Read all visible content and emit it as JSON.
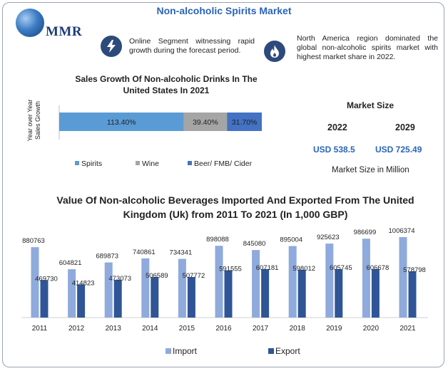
{
  "header": {
    "title": "Non-alcoholic Spirits Market",
    "logo_text": "MMR"
  },
  "insights": [
    {
      "icon": "lightning-bolt-icon",
      "text": "Online Segment witnessing rapid growth during the forecast period."
    },
    {
      "icon": "flame-icon",
      "text": "North America region dominated the global non-alcoholic spirits market with highest market share in 2022."
    }
  ],
  "market_size": {
    "title": "Market Size",
    "year_1": "2022",
    "year_2": "2029",
    "value_1": "USD 538.5",
    "value_2": "USD 725.49",
    "unit_note": "Market Size in Million"
  },
  "colors": {
    "title_blue": "#2b64b8",
    "spirits": "#5b9bd5",
    "wine": "#a5a5a5",
    "beer": "#4472c4",
    "import": "#8faadc",
    "export": "#2f5597"
  },
  "chart_data": [
    {
      "type": "bar",
      "stacked": true,
      "orientation": "horizontal",
      "title": "Sales Growth Of Non-alcoholic Drinks In The United States In 2021",
      "ylabel": "Year over Year Sales Growth",
      "series": [
        {
          "name": "Spirits",
          "values": [
            113.4
          ],
          "label": "113.40%"
        },
        {
          "name": "Wine",
          "values": [
            39.4
          ],
          "label": "39.40%"
        },
        {
          "name": "Beer/ FMB/ Cider",
          "values": [
            31.7
          ],
          "label": "31.70%"
        }
      ],
      "legend": "bottom"
    },
    {
      "type": "bar",
      "title": "Value Of Non-alcoholic Beverages Imported And Exported From The United Kingdom (Uk) from 2011 To 2021 (In 1,000 GBP)",
      "categories": [
        "2011",
        "2012",
        "2013",
        "2014",
        "2015",
        "2016",
        "2017",
        "2018",
        "2019",
        "2020",
        "2021"
      ],
      "series": [
        {
          "name": "Import",
          "values": [
            880763,
            604821,
            689873,
            740861,
            734341,
            898088,
            845080,
            895004,
            925623,
            986699,
            1006374
          ]
        },
        {
          "name": "Export",
          "values": [
            469730,
            414823,
            473073,
            506589,
            507772,
            591555,
            607181,
            598012,
            605745,
            606678,
            578798
          ]
        }
      ],
      "legend": "bottom",
      "ylim": [
        0,
        1006374
      ]
    }
  ]
}
